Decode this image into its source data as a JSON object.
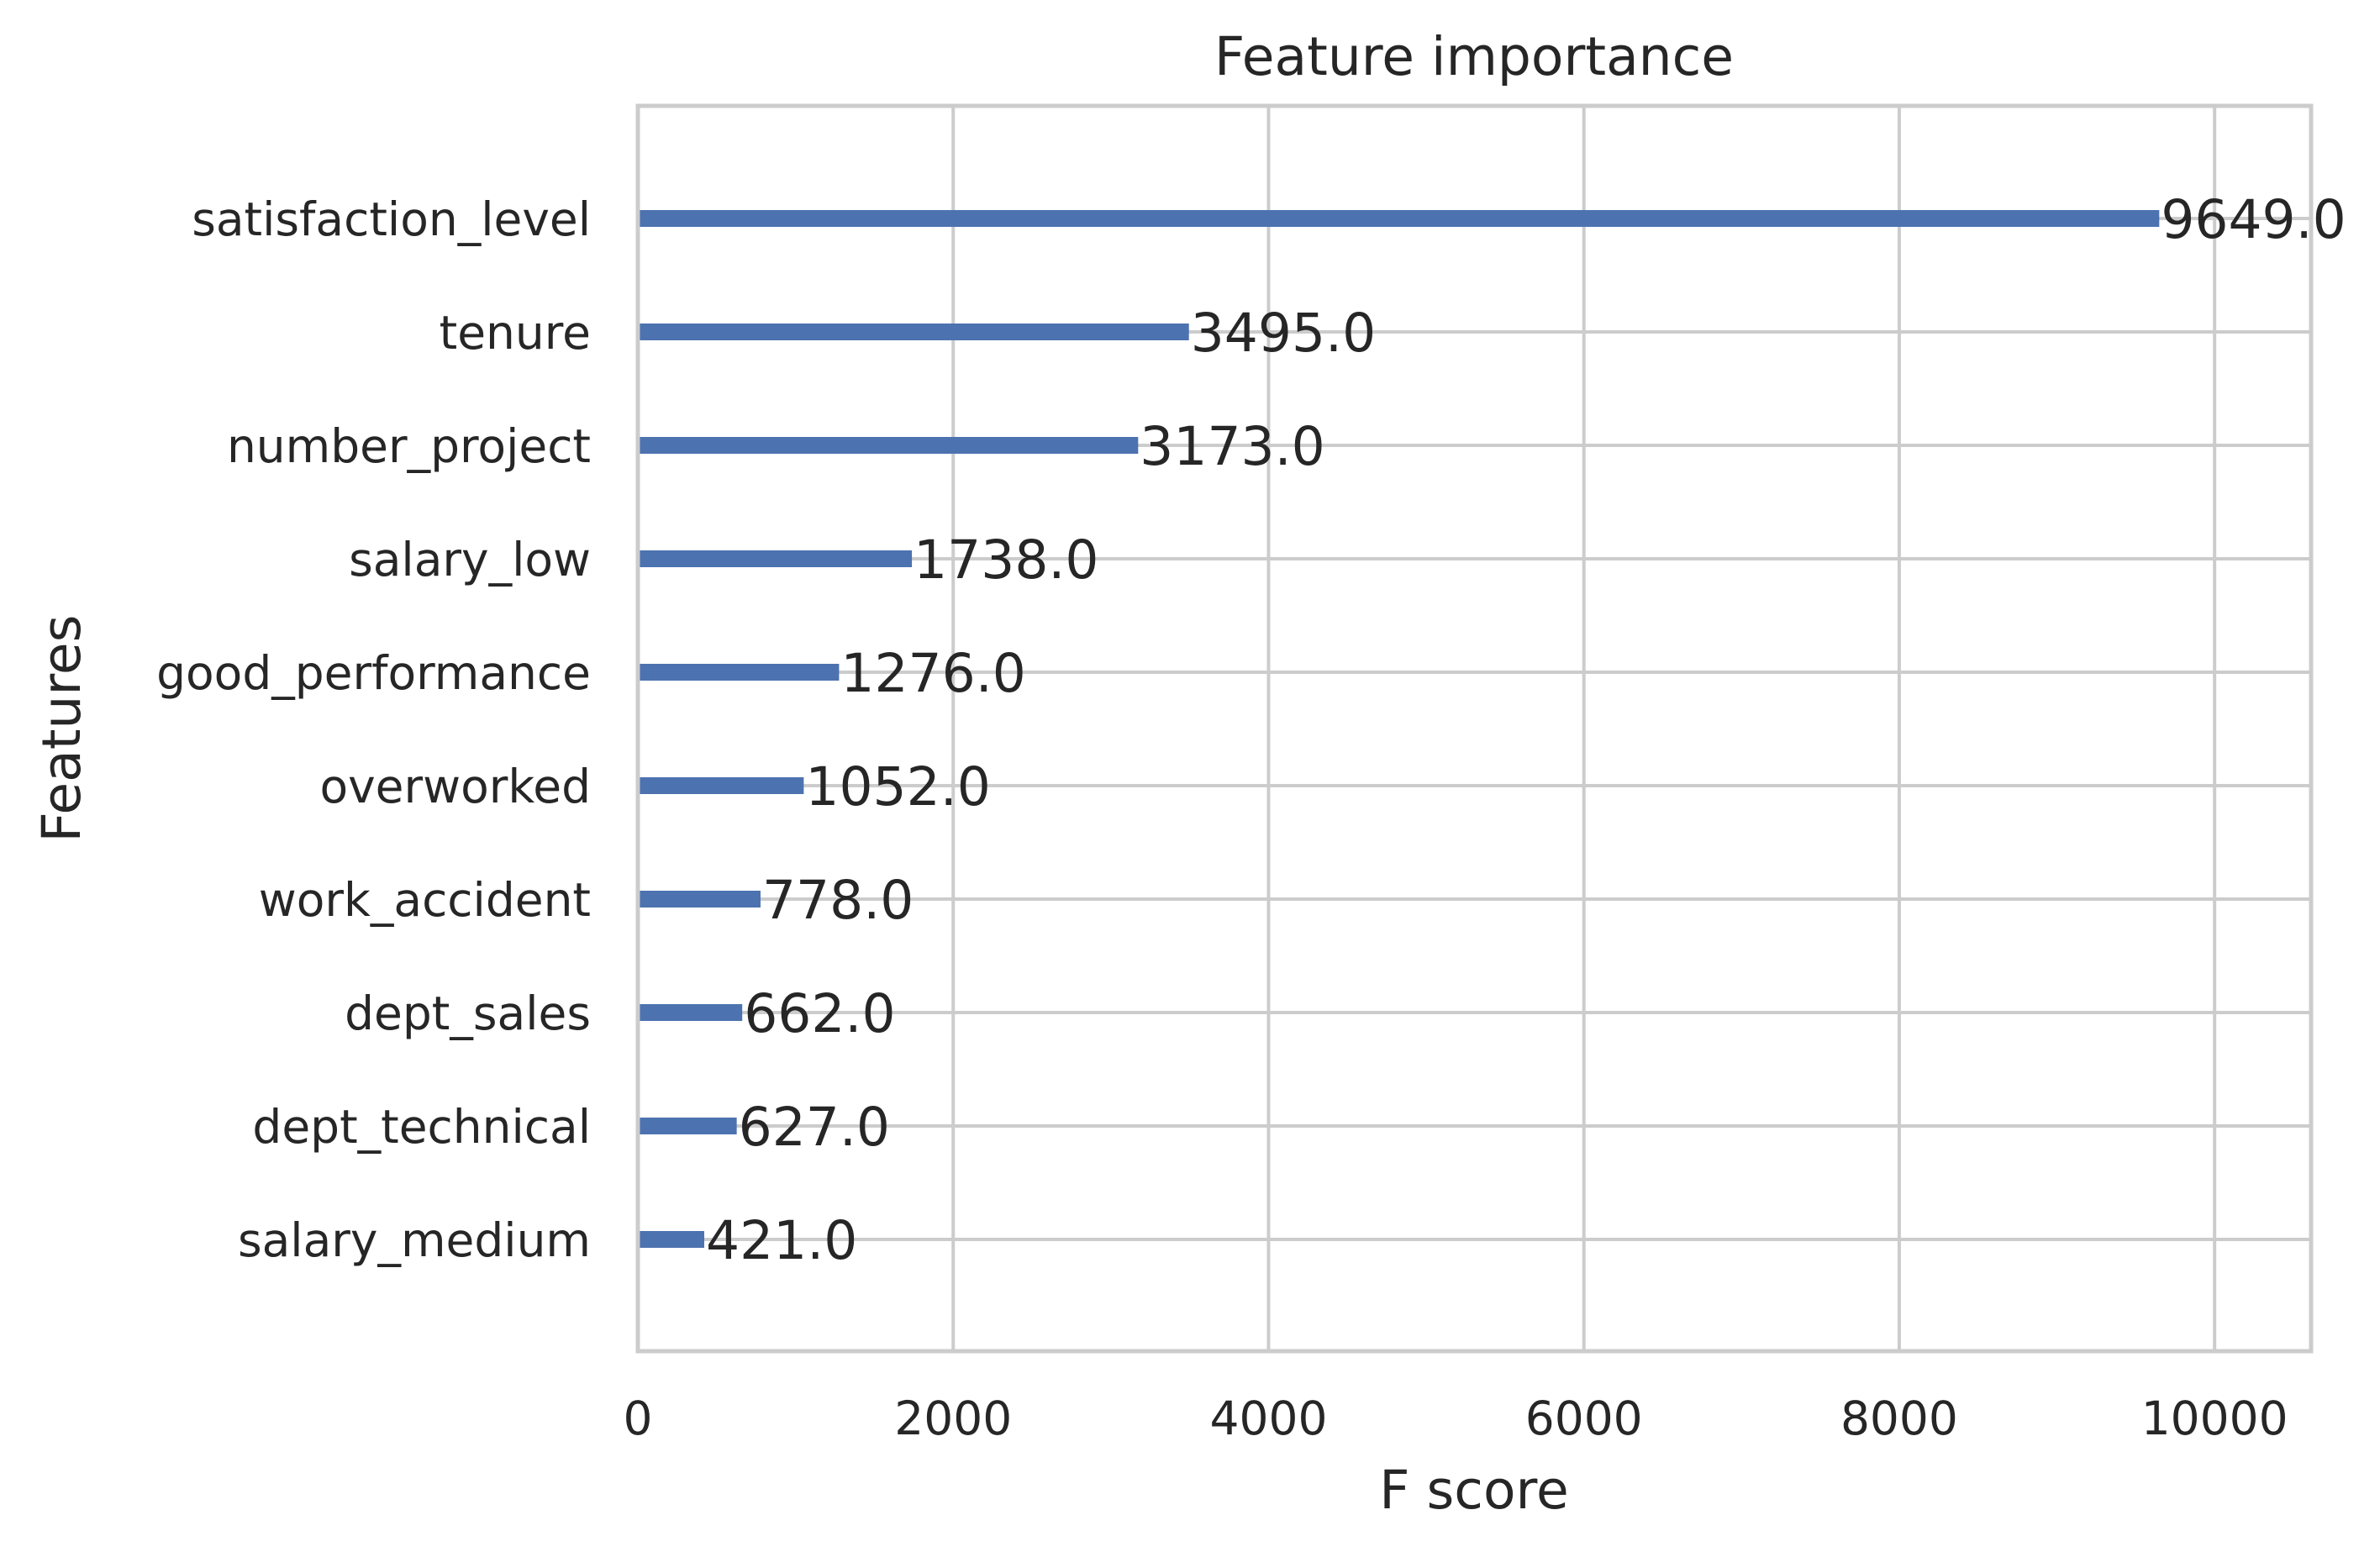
{
  "chart_data": {
    "type": "bar",
    "orientation": "horizontal",
    "title": "Feature importance",
    "xlabel": "F score",
    "ylabel": "Features",
    "xlim": [
      0,
      10612
    ],
    "x_ticks": [
      0,
      2000,
      4000,
      6000,
      8000,
      10000
    ],
    "x_tick_labels": [
      "0",
      "2000",
      "4000",
      "6000",
      "8000",
      "10000"
    ],
    "grid": true,
    "bar_color": "#4c72b0",
    "categories": [
      "satisfaction_level",
      "tenure",
      "number_project",
      "salary_low",
      "good_performance",
      "overworked",
      "work_accident",
      "dept_sales",
      "dept_technical",
      "salary_medium"
    ],
    "values": [
      9649.0,
      3495.0,
      3173.0,
      1738.0,
      1276.0,
      1052.0,
      778.0,
      662.0,
      627.0,
      421.0
    ],
    "data_labels": [
      "9649.0",
      "3495.0",
      "3173.0",
      "1738.0",
      "1276.0",
      "1052.0",
      "778.0",
      "662.0",
      "627.0",
      "421.0"
    ]
  }
}
